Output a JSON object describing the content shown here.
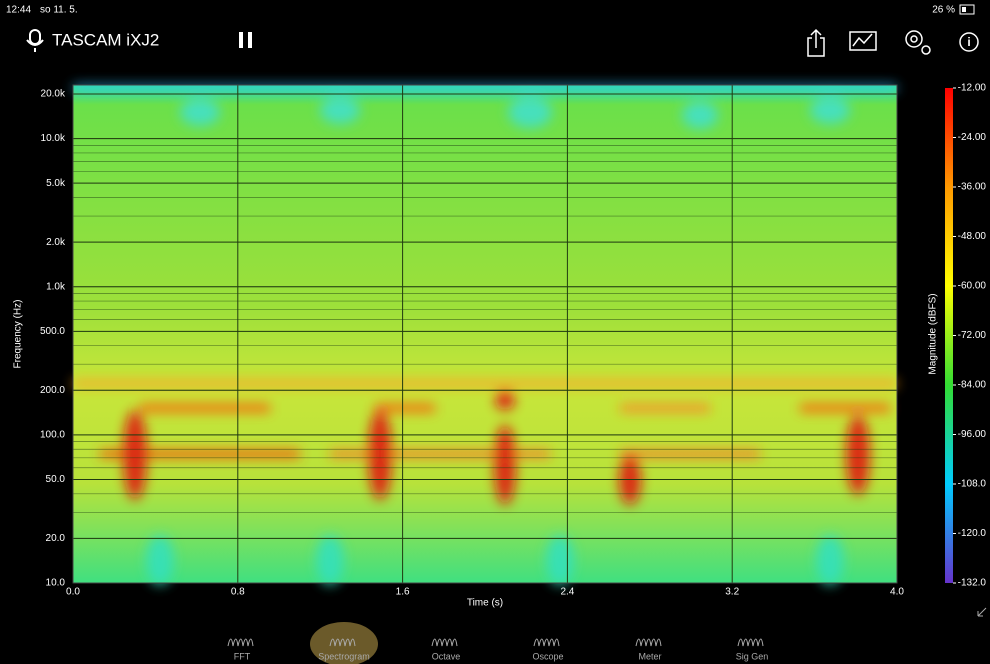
{
  "status_bar": {
    "time": "12:44",
    "date": "so 11. 5.",
    "battery": "26 %"
  },
  "toolbar": {
    "device": "TASCAM iXJ2"
  },
  "chart_data": {
    "type": "spectrogram",
    "x_label": "Time (s)",
    "y_label": "Frequency (Hz)",
    "xlim": [
      0,
      4
    ],
    "xticks": [
      {
        "value": 0,
        "label": "0.0"
      },
      0.8,
      1.6,
      2.4,
      3.2,
      {
        "value": 4,
        "label": "4.0"
      }
    ],
    "ylim": [
      10,
      23000
    ],
    "yscale": "log",
    "yticks": [
      {
        "value": 10,
        "label": "10.0"
      },
      {
        "value": 20,
        "label": "20.0"
      },
      {
        "value": 50,
        "label": "50.0"
      },
      {
        "value": 100,
        "label": "100.0"
      },
      {
        "value": 200,
        "label": "200.0"
      },
      {
        "value": 500,
        "label": "500.0"
      },
      {
        "value": 1000,
        "label": "1.0k"
      },
      {
        "value": 2000,
        "label": "2.0k"
      },
      {
        "value": 5000,
        "label": "5.0k"
      },
      {
        "value": 10000,
        "label": "10.0k"
      },
      {
        "value": 20000,
        "label": "20.0k"
      }
    ],
    "grid": true,
    "colorbar": {
      "label": "Magnitude (dBFS)",
      "lim": [
        -132,
        -12
      ],
      "ticks": [
        {
          "value": -12,
          "label": "-12.00"
        },
        {
          "value": -24,
          "label": "-24.00"
        },
        {
          "value": -36,
          "label": "-36.00"
        },
        {
          "value": -48,
          "label": "-48.00"
        },
        {
          "value": -60,
          "label": "-60.00"
        },
        {
          "value": -72,
          "label": "-72.00"
        },
        {
          "value": -84,
          "label": "-84.00"
        },
        {
          "value": -96,
          "label": "-96.00"
        },
        {
          "value": -108,
          "label": "-108.0"
        },
        {
          "value": -120,
          "label": "-120.0"
        },
        {
          "value": -132,
          "label": "-132.0"
        }
      ]
    }
  },
  "tabs": [
    "FFT",
    "Spectrogram",
    "Octave",
    "Oscope",
    "Meter",
    "Sig Gen"
  ],
  "active_tab": 1
}
